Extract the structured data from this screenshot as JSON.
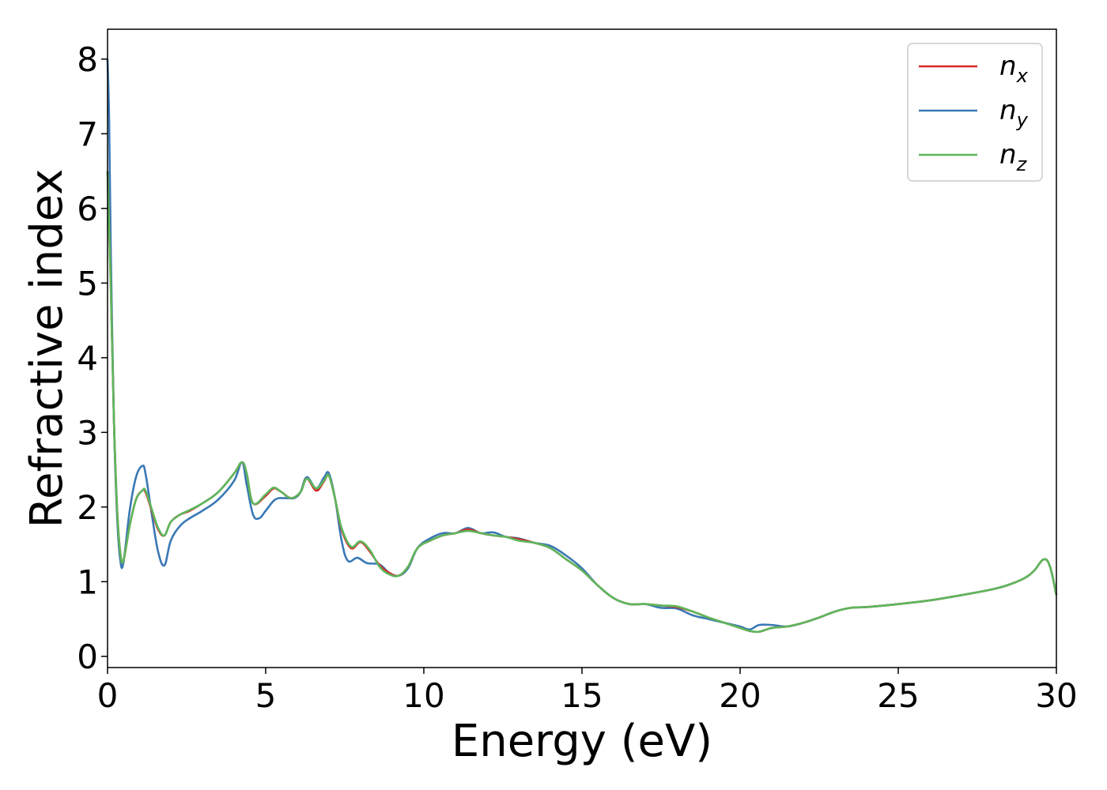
{
  "chart_data": {
    "type": "line",
    "title": "",
    "xlabel": "Energy (eV)",
    "ylabel": "Refractive index",
    "xlim": [
      0,
      30
    ],
    "ylim": [
      -0.15,
      8.4
    ],
    "xticks": [
      0,
      5,
      10,
      15,
      20,
      25,
      30
    ],
    "yticks": [
      0,
      1,
      2,
      3,
      4,
      5,
      6,
      7,
      8
    ],
    "grid": false,
    "legend_position": "top-right",
    "series": [
      {
        "name": "n_x",
        "label_base": "n",
        "label_sub": "x",
        "color": "#d62728",
        "x": [
          0,
          0.1,
          0.2,
          0.3,
          0.4,
          0.5,
          0.7,
          0.9,
          1.1,
          1.2,
          1.4,
          1.6,
          1.8,
          2.0,
          2.3,
          2.6,
          3.0,
          3.5,
          4.0,
          4.25,
          4.4,
          4.6,
          5.0,
          5.25,
          5.5,
          5.8,
          6.1,
          6.3,
          6.6,
          6.85,
          7.0,
          7.2,
          7.4,
          7.7,
          8.0,
          8.3,
          8.6,
          8.9,
          9.2,
          9.5,
          9.8,
          10.2,
          10.6,
          11.0,
          11.4,
          11.8,
          12.2,
          12.6,
          13.0,
          13.5,
          14.0,
          14.5,
          15.0,
          15.5,
          16.0,
          16.5,
          17.0,
          17.5,
          18.0,
          18.5,
          19.0,
          19.5,
          20.0,
          20.3,
          20.6,
          21.0,
          21.5,
          22.0,
          22.5,
          23.0,
          23.5,
          24.0,
          25.0,
          26.0,
          27.0,
          28.0,
          28.5,
          29.0,
          29.3,
          29.6,
          29.8,
          30.0
        ],
        "y": [
          6.5,
          5.0,
          3.2,
          2.0,
          1.4,
          1.28,
          1.75,
          2.1,
          2.22,
          2.2,
          1.95,
          1.7,
          1.62,
          1.8,
          1.9,
          1.95,
          2.05,
          2.2,
          2.45,
          2.6,
          2.45,
          2.05,
          2.15,
          2.25,
          2.2,
          2.12,
          2.2,
          2.38,
          2.22,
          2.35,
          2.42,
          2.1,
          1.7,
          1.45,
          1.53,
          1.4,
          1.22,
          1.12,
          1.08,
          1.2,
          1.45,
          1.55,
          1.62,
          1.65,
          1.7,
          1.65,
          1.62,
          1.6,
          1.57,
          1.52,
          1.45,
          1.3,
          1.15,
          0.95,
          0.78,
          0.7,
          0.7,
          0.68,
          0.66,
          0.6,
          0.52,
          0.45,
          0.38,
          0.34,
          0.33,
          0.38,
          0.4,
          0.45,
          0.52,
          0.6,
          0.65,
          0.66,
          0.7,
          0.75,
          0.82,
          0.9,
          0.96,
          1.05,
          1.15,
          1.3,
          1.2,
          0.82
        ]
      },
      {
        "name": "n_y",
        "label_base": "n",
        "label_sub": "y",
        "color": "#3a78b5",
        "x": [
          0,
          0.05,
          0.1,
          0.2,
          0.3,
          0.4,
          0.5,
          0.7,
          0.9,
          1.1,
          1.2,
          1.4,
          1.6,
          1.8,
          2.0,
          2.3,
          2.6,
          3.0,
          3.5,
          4.0,
          4.25,
          4.4,
          4.6,
          4.8,
          5.0,
          5.3,
          5.6,
          5.9,
          6.1,
          6.3,
          6.6,
          6.85,
          7.0,
          7.2,
          7.4,
          7.6,
          7.9,
          8.2,
          8.6,
          8.9,
          9.2,
          9.5,
          9.8,
          10.2,
          10.6,
          11.0,
          11.4,
          11.8,
          12.2,
          12.6,
          13.0,
          13.5,
          14.0,
          14.5,
          15.0,
          15.5,
          16.0,
          16.5,
          17.0,
          17.5,
          18.0,
          18.5,
          19.0,
          19.5,
          20.0,
          20.3,
          20.6,
          21.0,
          21.5,
          22.0,
          22.5,
          23.0,
          23.5,
          24.0,
          25.0,
          26.0,
          27.0,
          28.0,
          28.5,
          29.0,
          29.3,
          29.6,
          29.8,
          30.0
        ],
        "y": [
          8.0,
          7.2,
          5.5,
          3.2,
          1.9,
          1.3,
          1.25,
          1.95,
          2.4,
          2.55,
          2.45,
          1.9,
          1.4,
          1.22,
          1.55,
          1.75,
          1.85,
          1.95,
          2.1,
          2.35,
          2.6,
          2.3,
          1.9,
          1.85,
          1.95,
          2.1,
          2.12,
          2.12,
          2.2,
          2.4,
          2.25,
          2.4,
          2.45,
          2.1,
          1.55,
          1.28,
          1.32,
          1.25,
          1.23,
          1.12,
          1.08,
          1.18,
          1.45,
          1.58,
          1.65,
          1.65,
          1.72,
          1.65,
          1.66,
          1.6,
          1.58,
          1.52,
          1.48,
          1.35,
          1.18,
          0.95,
          0.78,
          0.7,
          0.7,
          0.65,
          0.64,
          0.55,
          0.5,
          0.45,
          0.4,
          0.36,
          0.42,
          0.42,
          0.4,
          0.45,
          0.52,
          0.6,
          0.65,
          0.66,
          0.7,
          0.75,
          0.82,
          0.9,
          0.96,
          1.05,
          1.15,
          1.3,
          1.2,
          0.82
        ]
      },
      {
        "name": "n_z",
        "label_base": "n",
        "label_sub": "z",
        "color": "#5cb85c",
        "x": [
          0,
          0.1,
          0.2,
          0.3,
          0.4,
          0.5,
          0.7,
          0.9,
          1.1,
          1.2,
          1.4,
          1.6,
          1.8,
          2.0,
          2.3,
          2.6,
          3.0,
          3.5,
          4.0,
          4.25,
          4.4,
          4.6,
          5.0,
          5.25,
          5.5,
          5.8,
          6.1,
          6.3,
          6.6,
          6.85,
          7.0,
          7.2,
          7.4,
          7.7,
          8.0,
          8.3,
          8.6,
          8.9,
          9.2,
          9.5,
          9.8,
          10.2,
          10.6,
          11.0,
          11.4,
          11.8,
          12.2,
          12.6,
          13.0,
          13.5,
          14.0,
          14.5,
          15.0,
          15.5,
          16.0,
          16.5,
          17.0,
          17.5,
          18.0,
          18.5,
          19.0,
          19.5,
          20.0,
          20.3,
          20.6,
          21.0,
          21.5,
          22.0,
          22.5,
          23.0,
          23.5,
          24.0,
          25.0,
          26.0,
          27.0,
          28.0,
          28.5,
          29.0,
          29.3,
          29.6,
          29.8,
          30.0
        ],
        "y": [
          6.5,
          5.0,
          3.2,
          2.0,
          1.4,
          1.28,
          1.75,
          2.1,
          2.22,
          2.22,
          1.97,
          1.72,
          1.62,
          1.8,
          1.9,
          1.96,
          2.05,
          2.2,
          2.45,
          2.6,
          2.45,
          2.05,
          2.17,
          2.26,
          2.2,
          2.12,
          2.2,
          2.38,
          2.25,
          2.36,
          2.42,
          2.1,
          1.72,
          1.47,
          1.54,
          1.42,
          1.2,
          1.1,
          1.08,
          1.2,
          1.45,
          1.55,
          1.62,
          1.65,
          1.68,
          1.65,
          1.62,
          1.6,
          1.55,
          1.52,
          1.45,
          1.3,
          1.15,
          0.95,
          0.78,
          0.7,
          0.7,
          0.68,
          0.67,
          0.6,
          0.52,
          0.45,
          0.38,
          0.34,
          0.33,
          0.38,
          0.4,
          0.45,
          0.52,
          0.6,
          0.65,
          0.66,
          0.7,
          0.75,
          0.82,
          0.9,
          0.96,
          1.05,
          1.15,
          1.3,
          1.2,
          0.82
        ]
      }
    ]
  }
}
